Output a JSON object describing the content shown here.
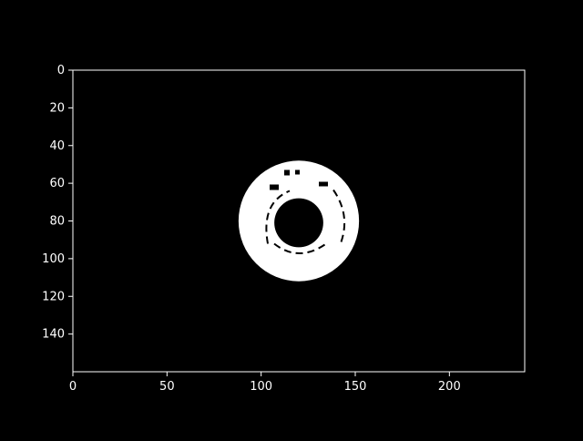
{
  "chart_data": {
    "type": "heatmap",
    "title": "",
    "xlabel": "",
    "ylabel": "",
    "xlim": [
      0,
      240
    ],
    "ylim": [
      160,
      0
    ],
    "x_ticks": [
      0,
      50,
      100,
      150,
      200
    ],
    "y_ticks": [
      0,
      20,
      40,
      60,
      80,
      100,
      120,
      140
    ],
    "colormap": "gray",
    "image_description_values": {
      "ring_center": [
        120,
        80
      ],
      "outer_radius": 32,
      "inner_radius": 13,
      "value_inside_ring": 1,
      "value_background": 0
    },
    "grid": false,
    "legend": "none"
  },
  "colors": {
    "background": "#000000",
    "foreground": "#ffffff"
  }
}
